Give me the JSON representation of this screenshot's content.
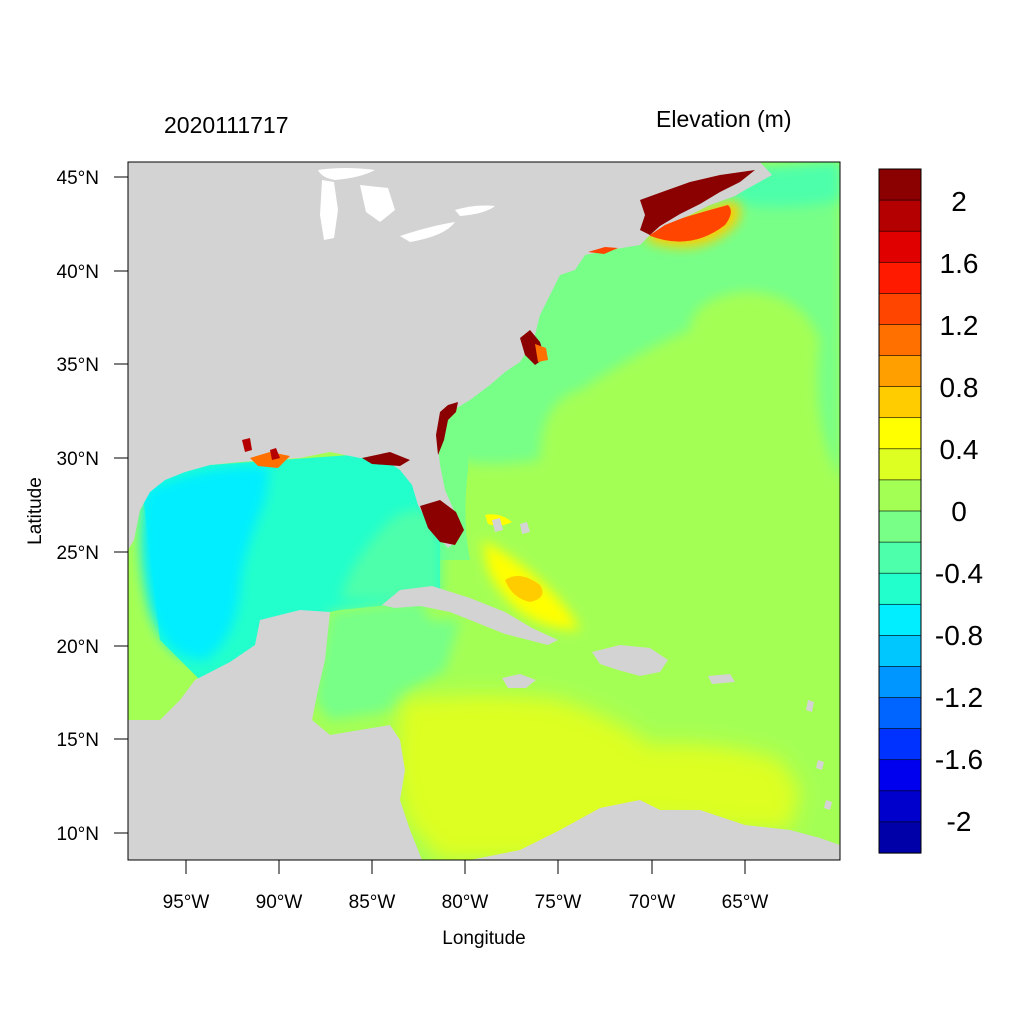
{
  "titles": {
    "left": "2020111717",
    "right": "Elevation (m)"
  },
  "axes": {
    "xlabel": "Longitude",
    "ylabel": "Latitude",
    "xticks": [
      "95°W",
      "90°W",
      "85°W",
      "80°W",
      "75°W",
      "70°W",
      "65°W"
    ],
    "yticks": [
      "45°N",
      "40°N",
      "35°N",
      "30°N",
      "25°N",
      "20°N",
      "15°N",
      "10°N"
    ]
  },
  "colorbar": {
    "colors": [
      "#8b0000",
      "#b40000",
      "#e00000",
      "#ff1a00",
      "#ff4500",
      "#ff7000",
      "#ffa000",
      "#ffcc00",
      "#ffff00",
      "#ddff22",
      "#a4ff55",
      "#77ff88",
      "#4dffaa",
      "#22ffcc",
      "#00eeff",
      "#00c8ff",
      "#0096ff",
      "#0064ff",
      "#0032ff",
      "#0000ee",
      "#0000cd",
      "#0000a8"
    ],
    "labels": [
      "2",
      "1.6",
      "1.2",
      "0.8",
      "0.4",
      "0",
      "-0.4",
      "-0.8",
      "-1.2",
      "-1.6",
      "-2"
    ]
  },
  "map_colors": {
    "land": "#d3d3d3",
    "lakes": "#ffffff"
  }
}
